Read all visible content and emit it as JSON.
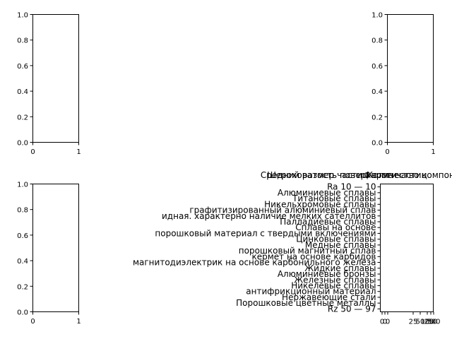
{
  "chart_data": [
    {
      "type": "empty",
      "position": "top-left",
      "xlim": [
        0,
        1
      ],
      "ylim": [
        0,
        1
      ],
      "xticks": [
        "0",
        "1"
      ],
      "yticks": [
        "0.0",
        "0.2",
        "0.4",
        "0.6",
        "0.8",
        "1.0"
      ]
    },
    {
      "type": "empty",
      "position": "top-right",
      "xlim": [
        0,
        1
      ],
      "ylim": [
        0,
        1
      ],
      "xticks": [
        "0",
        "1"
      ],
      "yticks": [
        "0.0",
        "0.2",
        "0.4",
        "0.6",
        "0.8",
        "1.0"
      ]
    },
    {
      "type": "empty",
      "position": "bottom-left",
      "xlim": [
        0,
        1
      ],
      "ylim": [
        0,
        1
      ],
      "xticks": [
        "0",
        "1"
      ],
      "yticks": [
        "0.0",
        "0.2",
        "0.4",
        "0.6",
        "0.8",
        "1.0"
      ]
    },
    {
      "type": "bar",
      "orientation": "horizontal",
      "position": "bottom-right",
      "titles": [
        "Средний размер частиц",
        "Шероховатость поверхности",
        "Форма частиц",
        "Количество компонентов"
      ],
      "categories": [
        "Ra 10 — 10",
        "Алюминиевые сплавы",
        "Титановые сплавы",
        "Никельхромовые сплавы",
        "графитизированный алюминиевый сплав",
        "идная. характерно наличие мелких сателлитов",
        "Палладиевые сплавы",
        "Сплавы на основе",
        "порошковый материал с твердыми включениями",
        "Цинковые сплавы",
        "Медные сплавы",
        "порошковый магнитный сплав",
        "кермет на основе карбидов",
        "магнитодиэлектрик на основе карбонильного железа",
        "Жидкие сплавы",
        "Алюминиевые бронзы",
        "Железные сплавы",
        "Никелевые сплавы",
        "антифрикционный материал",
        "Нержавеющие стали",
        "Порошковые цветные металлы",
        "Rz 50 — 97"
      ],
      "values": [
        0,
        0,
        0,
        0,
        0,
        0,
        0,
        0,
        0,
        0,
        0,
        0,
        0,
        0,
        0,
        0,
        0,
        0,
        0,
        0,
        0,
        0
      ],
      "xticks": [
        "0",
        "0",
        "0",
        "25",
        "50",
        "100",
        "250",
        "500"
      ],
      "ylim_label": "Ra 10 — 10 ... Rz 50 — 97"
    }
  ]
}
